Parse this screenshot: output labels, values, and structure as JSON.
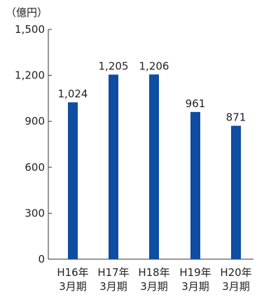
{
  "colors": {
    "bar": "#0f4da3",
    "axis": "#333333",
    "text": "#222222"
  },
  "chart_data": {
    "type": "bar",
    "unit_label": "（億円）",
    "categories": [
      [
        "H16年",
        "3月期"
      ],
      [
        "H17年",
        "3月期"
      ],
      [
        "H18年",
        "3月期"
      ],
      [
        "H19年",
        "3月期"
      ],
      [
        "H20年",
        "3月期"
      ]
    ],
    "values": [
      1024,
      1205,
      1206,
      961,
      871
    ],
    "value_labels": [
      "1,024",
      "1,205",
      "1,206",
      "961",
      "871"
    ],
    "yticks": [
      0,
      300,
      600,
      900,
      1200,
      1500
    ],
    "ytick_labels": [
      "0",
      "300",
      "600",
      "900",
      "1,200",
      "1,500"
    ],
    "ylim": [
      0,
      1500
    ],
    "grid": false,
    "legend": "none"
  }
}
